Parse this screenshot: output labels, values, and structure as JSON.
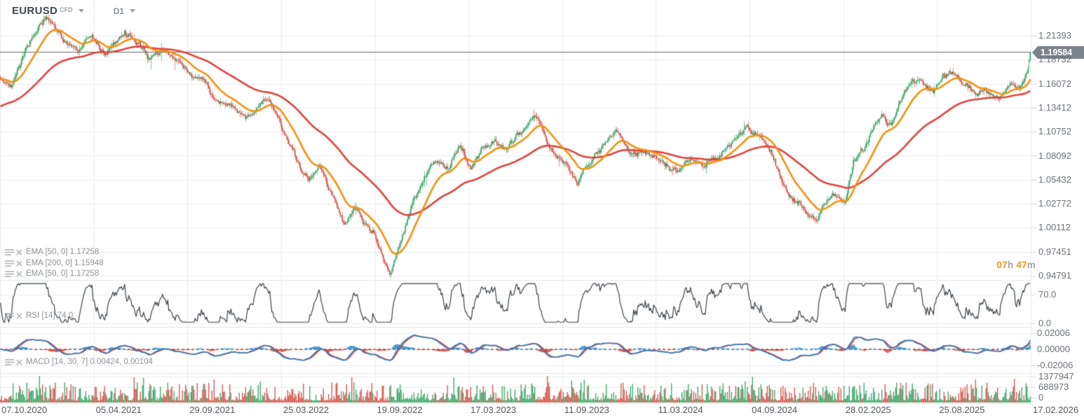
{
  "header": {
    "symbol": "EURUSD",
    "instrument_type": "CFD",
    "timeframe": "D1"
  },
  "indicator_legends": [
    {
      "id": "ema-50-a",
      "label": "EMA [50, 0] 1.17258"
    },
    {
      "id": "ema-200",
      "label": "EMA [200, 0] 1.15948"
    },
    {
      "id": "ema-50-b",
      "label": "EMA [50, 0] 1.17258"
    },
    {
      "id": "rsi",
      "label": "RSI [14] 74.0"
    },
    {
      "id": "macd",
      "label": "MACD [14, 30, 7] 0.00424, 0.00104"
    }
  ],
  "countdown": {
    "hours": "07",
    "hours_unit": "h",
    "minutes": "47",
    "minutes_unit": "m"
  },
  "chart_data": {
    "type": "candlestick",
    "title": "EURUSD CFD D1",
    "current_price": "1.19584",
    "price_axis": {
      "max": 1.21393,
      "min": 0.94791,
      "labels": [
        "1.21393",
        "1.18732",
        "1.16072",
        "1.13412",
        "1.10752",
        "1.08092",
        "1.05432",
        "1.02772",
        "1.00112",
        "0.97451",
        "0.94791"
      ]
    },
    "date_axis": [
      "07.10.2020",
      "05.04.2021",
      "29.09.2021",
      "25.03.2022",
      "19.09.2022",
      "17.03.2023",
      "11.09.2023",
      "11.03.2024",
      "04.09.2024",
      "28.02.2025",
      "25.08.2025",
      "17.02.2026"
    ],
    "rsi_axis": {
      "labels": [
        "70.0",
        "0.0"
      ],
      "values": [
        70,
        0
      ]
    },
    "macd_axis": {
      "labels": [
        "0.02006",
        "0.00000",
        "-0.02006"
      ],
      "values": [
        0.02006,
        0,
        -0.02006
      ]
    },
    "volume_axis": {
      "labels": [
        "1377947",
        "688973",
        "0"
      ],
      "values": [
        1377947,
        688973,
        0
      ]
    },
    "indicators": {
      "ema_fast": {
        "type": "EMA",
        "params": [
          50,
          0
        ],
        "value": 1.17258
      },
      "ema_slow": {
        "type": "EMA",
        "params": [
          200,
          0
        ],
        "value": 1.15948
      },
      "rsi": {
        "type": "RSI",
        "params": [
          14
        ],
        "value": 74.0
      },
      "macd": {
        "type": "MACD",
        "params": [
          14,
          30,
          7
        ],
        "values": [
          0.00424,
          0.00104
        ]
      }
    },
    "colors": {
      "bull": "#26a05a",
      "bear": "#d0453c",
      "ema_fast": "#f6920f",
      "ema_slow": "#e2433c",
      "rsi_line": "#3b434b",
      "macd_line": "#2e85c8",
      "macd_signal": "#d23b34",
      "hist_pos": "#1f7ec2",
      "hist_neg": "#c62f28",
      "price_line": "#63676b",
      "badge_bg": "#7b848b",
      "grid": "#ededed",
      "separator": "#e2e4e6",
      "countdown_accent": "#f7941e"
    },
    "price_keypoints": [
      [
        0,
        1.17
      ],
      [
        15,
        1.16
      ],
      [
        30,
        1.186
      ],
      [
        65,
        1.228
      ],
      [
        90,
        1.21
      ],
      [
        110,
        1.199
      ],
      [
        130,
        1.214
      ],
      [
        150,
        1.197
      ],
      [
        178,
        1.221
      ],
      [
        200,
        1.205
      ],
      [
        212,
        1.186
      ],
      [
        232,
        1.193
      ],
      [
        262,
        1.172
      ],
      [
        292,
        1.161
      ],
      [
        312,
        1.138
      ],
      [
        335,
        1.131
      ],
      [
        358,
        1.127
      ],
      [
        375,
        1.145
      ],
      [
        395,
        1.131
      ],
      [
        420,
        1.091
      ],
      [
        440,
        1.053
      ],
      [
        455,
        1.071
      ],
      [
        472,
        1.045
      ],
      [
        490,
        1.018
      ],
      [
        505,
        1.03
      ],
      [
        520,
        1.004
      ],
      [
        535,
        0.998
      ],
      [
        549,
        0.959
      ],
      [
        557,
        0.9535
      ],
      [
        566,
        0.976
      ],
      [
        576,
        0.998
      ],
      [
        590,
        1.032
      ],
      [
        607,
        1.057
      ],
      [
        625,
        1.073
      ],
      [
        641,
        1.063
      ],
      [
        657,
        1.091
      ],
      [
        671,
        1.069
      ],
      [
        690,
        1.093
      ],
      [
        706,
        1.101
      ],
      [
        721,
        1.081
      ],
      [
        741,
        1.104
      ],
      [
        762,
        1.124
      ],
      [
        781,
        1.095
      ],
      [
        801,
        1.071
      ],
      [
        823,
        1.049
      ],
      [
        841,
        1.073
      ],
      [
        859,
        1.091
      ],
      [
        879,
        1.109
      ],
      [
        901,
        1.081
      ],
      [
        921,
        1.087
      ],
      [
        946,
        1.073
      ],
      [
        966,
        1.063
      ],
      [
        986,
        1.079
      ],
      [
        1006,
        1.067
      ],
      [
        1026,
        1.086
      ],
      [
        1046,
        1.101
      ],
      [
        1066,
        1.116
      ],
      [
        1086,
        1.108
      ],
      [
        1101,
        1.089
      ],
      [
        1116,
        1.059
      ],
      [
        1136,
        1.041
      ],
      [
        1151,
        1.031
      ],
      [
        1166,
        1.023
      ],
      [
        1181,
        1.043
      ],
      [
        1196,
        1.049
      ],
      [
        1206,
        1.041
      ],
      [
        1217,
        1.083
      ],
      [
        1231,
        1.091
      ],
      [
        1246,
        1.121
      ],
      [
        1257,
        1.136
      ],
      [
        1271,
        1.131
      ],
      [
        1286,
        1.153
      ],
      [
        1301,
        1.173
      ],
      [
        1316,
        1.168
      ],
      [
        1331,
        1.158
      ],
      [
        1346,
        1.172
      ],
      [
        1361,
        1.176
      ],
      [
        1376,
        1.163
      ],
      [
        1391,
        1.156
      ],
      [
        1406,
        1.161
      ],
      [
        1421,
        1.156
      ],
      [
        1434,
        1.166
      ],
      [
        1444,
        1.171
      ],
      [
        1455,
        1.169
      ],
      [
        1463,
        1.18
      ],
      [
        1470,
        1.19584
      ]
    ]
  }
}
